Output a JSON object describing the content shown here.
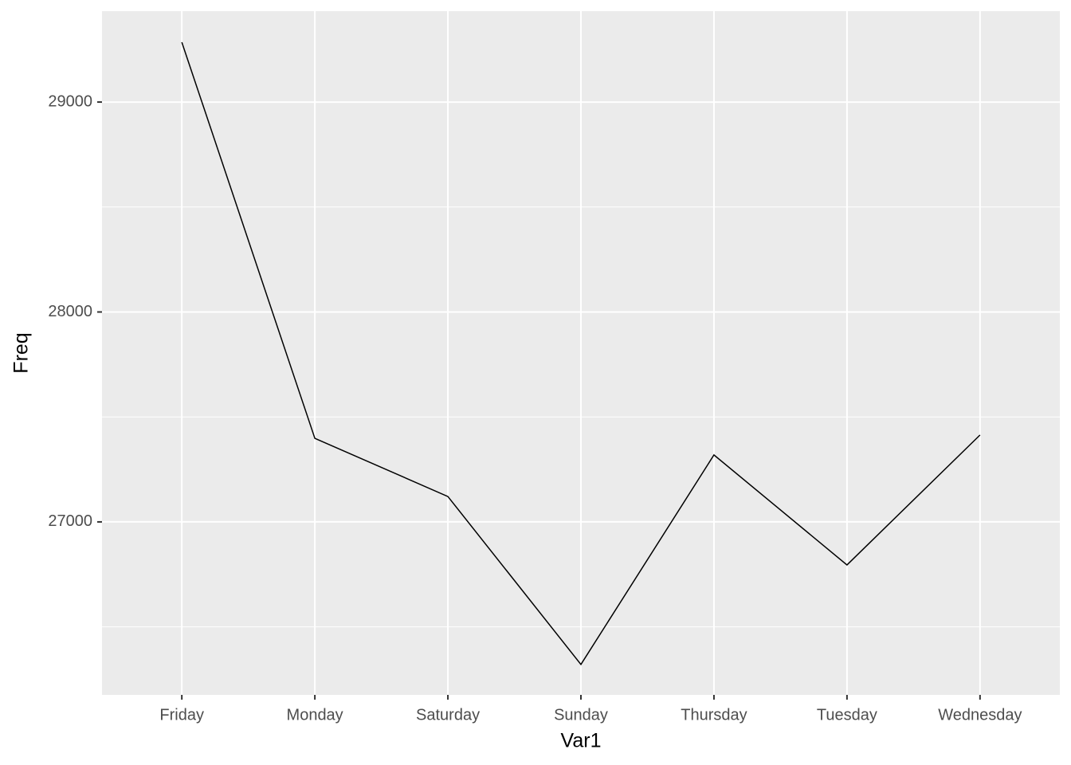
{
  "chart_data": {
    "type": "line",
    "x_label": "Var1",
    "y_label": "Freq",
    "categories": [
      "Friday",
      "Monday",
      "Saturday",
      "Sunday",
      "Thursday",
      "Tuesday",
      "Wednesday"
    ],
    "values": [
      29285,
      27398,
      27121,
      26321,
      27319,
      26795,
      27414
    ],
    "color": "#000000",
    "ylim": [
      26176,
      29433
    ],
    "yticks": [
      27000,
      28000,
      29000
    ],
    "minor_yticks": [
      26500,
      27500,
      28500
    ],
    "grid": true
  }
}
